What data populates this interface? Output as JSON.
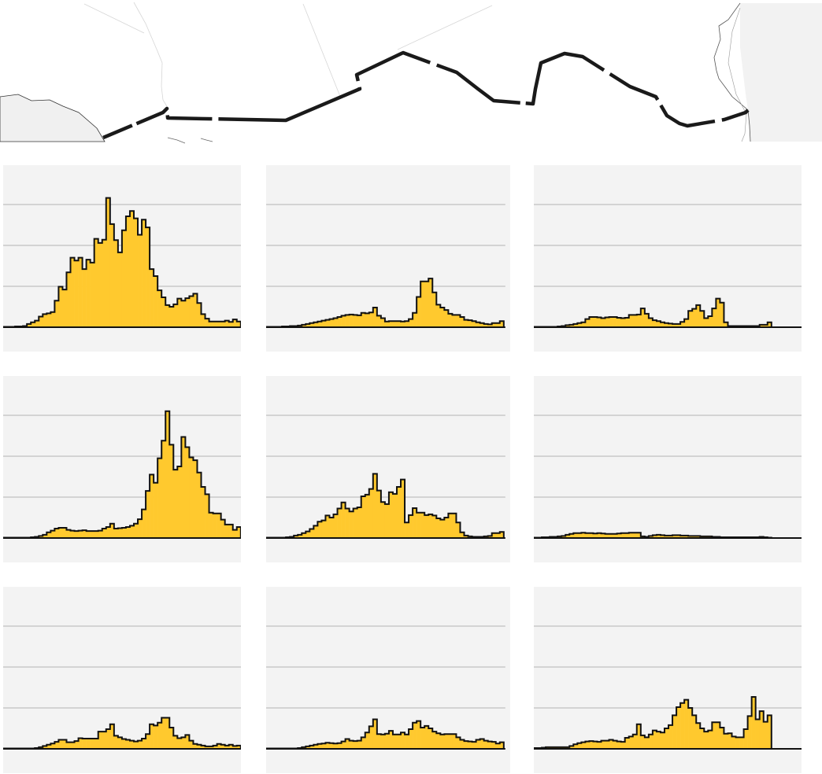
{
  "colors": {
    "fill": "#ffc92e",
    "outline": "#111111",
    "panel_background": "#f3f3f3",
    "gridline": "#b3b3b3",
    "border_line": "#1a1a1a",
    "water": "#f0f0f0"
  },
  "map": {
    "icon": "us-mexico-border-map"
  },
  "chart_data": [
    {
      "type": "bar",
      "subtype": "histogram",
      "grid": true,
      "ylim": [
        0,
        4
      ],
      "gridlines": [
        1,
        2,
        3
      ],
      "x_range": [
        0,
        60
      ],
      "values": [
        0.01,
        0.01,
        0.01,
        0.02,
        0.02,
        0.03,
        0.08,
        0.12,
        0.16,
        0.26,
        0.32,
        0.34,
        0.37,
        0.65,
        0.99,
        0.92,
        1.34,
        1.7,
        1.63,
        1.7,
        1.42,
        1.65,
        1.58,
        2.16,
        2.06,
        2.14,
        3.16,
        2.52,
        2.13,
        1.83,
        2.37,
        2.71,
        2.84,
        2.66,
        2.26,
        2.63,
        2.44,
        1.42,
        1.25,
        0.9,
        0.73,
        0.54,
        0.5,
        0.56,
        0.7,
        0.65,
        0.71,
        0.76,
        0.82,
        0.59,
        0.32,
        0.21,
        0.14,
        0.14,
        0.14,
        0.14,
        0.16,
        0.13,
        0.19,
        0.14
      ]
    },
    {
      "type": "bar",
      "subtype": "histogram",
      "grid": true,
      "ylim": [
        0,
        4
      ],
      "gridlines": [
        1,
        2,
        3
      ],
      "x_range": [
        0,
        60
      ],
      "values": [
        0.01,
        0.01,
        0.01,
        0.01,
        0.02,
        0.02,
        0.03,
        0.03,
        0.04,
        0.06,
        0.08,
        0.1,
        0.12,
        0.14,
        0.16,
        0.18,
        0.2,
        0.22,
        0.25,
        0.28,
        0.3,
        0.31,
        0.3,
        0.29,
        0.35,
        0.34,
        0.36,
        0.48,
        0.28,
        0.22,
        0.14,
        0.15,
        0.15,
        0.15,
        0.14,
        0.15,
        0.2,
        0.35,
        0.74,
        1.12,
        1.12,
        1.19,
        0.85,
        0.55,
        0.48,
        0.42,
        0.33,
        0.3,
        0.3,
        0.25,
        0.18,
        0.17,
        0.15,
        0.12,
        0.1,
        0.08,
        0.07,
        0.1,
        0.1,
        0.15
      ]
    },
    {
      "type": "bar",
      "subtype": "histogram",
      "grid": true,
      "ylim": [
        0,
        4
      ],
      "gridlines": [
        1,
        2,
        3
      ],
      "x_range": [
        0,
        68
      ],
      "values": [
        0.01,
        0.01,
        0.01,
        0.01,
        0.01,
        0.01,
        0.02,
        0.03,
        0.05,
        0.06,
        0.08,
        0.1,
        0.12,
        0.2,
        0.25,
        0.25,
        0.24,
        0.22,
        0.24,
        0.25,
        0.25,
        0.23,
        0.22,
        0.23,
        0.3,
        0.3,
        0.31,
        0.46,
        0.33,
        0.22,
        0.17,
        0.15,
        0.12,
        0.1,
        0.09,
        0.08,
        0.08,
        0.13,
        0.2,
        0.4,
        0.45,
        0.54,
        0.4,
        0.22,
        0.27,
        0.46,
        0.7,
        0.6,
        0.12,
        0.03,
        0.03,
        0.03,
        0.03,
        0.03,
        0.03,
        0.03,
        0.03,
        0.06,
        0.06,
        0.12
      ]
    },
    {
      "type": "bar",
      "subtype": "histogram",
      "grid": true,
      "ylim": [
        0,
        4
      ],
      "gridlines": [
        1,
        2,
        3
      ],
      "x_range": [
        0,
        60
      ],
      "values": [
        0.01,
        0.01,
        0.01,
        0.01,
        0.01,
        0.01,
        0.01,
        0.02,
        0.03,
        0.05,
        0.08,
        0.14,
        0.18,
        0.23,
        0.25,
        0.25,
        0.2,
        0.18,
        0.17,
        0.18,
        0.19,
        0.17,
        0.17,
        0.17,
        0.18,
        0.23,
        0.27,
        0.35,
        0.23,
        0.24,
        0.25,
        0.27,
        0.3,
        0.35,
        0.46,
        0.7,
        1.15,
        1.55,
        1.35,
        1.95,
        2.38,
        3.1,
        2.28,
        1.67,
        1.75,
        2.47,
        2.22,
        1.97,
        1.9,
        1.6,
        1.25,
        1.07,
        0.62,
        0.6,
        0.6,
        0.45,
        0.33,
        0.33,
        0.2,
        0.27
      ]
    },
    {
      "type": "bar",
      "subtype": "histogram",
      "grid": true,
      "ylim": [
        0,
        4
      ],
      "gridlines": [
        1,
        2,
        3
      ],
      "x_range": [
        0,
        60
      ],
      "values": [
        0.01,
        0.01,
        0.01,
        0.01,
        0.01,
        0.02,
        0.03,
        0.06,
        0.08,
        0.12,
        0.16,
        0.22,
        0.3,
        0.4,
        0.43,
        0.55,
        0.5,
        0.58,
        0.72,
        0.87,
        0.72,
        0.65,
        0.72,
        0.75,
        1.02,
        1.06,
        1.2,
        1.57,
        1.16,
        0.88,
        0.83,
        1.12,
        1.08,
        1.25,
        1.43,
        0.38,
        0.56,
        0.73,
        0.62,
        0.62,
        0.56,
        0.58,
        0.55,
        0.48,
        0.45,
        0.5,
        0.6,
        0.6,
        0.38,
        0.14,
        0.06,
        0.04,
        0.03,
        0.03,
        0.03,
        0.04,
        0.05,
        0.12,
        0.12,
        0.15
      ]
    },
    {
      "type": "bar",
      "subtype": "histogram",
      "grid": true,
      "ylim": [
        0,
        4
      ],
      "gridlines": [
        1,
        2,
        3
      ],
      "x_range": [
        0,
        68
      ],
      "values": [
        0.01,
        0.01,
        0.02,
        0.02,
        0.03,
        0.03,
        0.04,
        0.05,
        0.08,
        0.1,
        0.12,
        0.12,
        0.13,
        0.12,
        0.12,
        0.11,
        0.12,
        0.11,
        0.1,
        0.1,
        0.1,
        0.11,
        0.12,
        0.12,
        0.13,
        0.13,
        0.13,
        0.04,
        0.03,
        0.05,
        0.07,
        0.08,
        0.07,
        0.06,
        0.06,
        0.07,
        0.07,
        0.06,
        0.06,
        0.05,
        0.05,
        0.05,
        0.04,
        0.04,
        0.04,
        0.03,
        0.03,
        0.02,
        0.02,
        0.02,
        0.02,
        0.02,
        0.02,
        0.02,
        0.02,
        0.02,
        0.02,
        0.03,
        0.02,
        0.01
      ]
    },
    {
      "type": "bar",
      "subtype": "histogram",
      "grid": true,
      "ylim": [
        0,
        4
      ],
      "gridlines": [
        1,
        2,
        3
      ],
      "x_range": [
        0,
        60
      ],
      "values": [
        0.01,
        0.01,
        0.01,
        0.01,
        0.01,
        0.01,
        0.01,
        0.01,
        0.02,
        0.04,
        0.07,
        0.1,
        0.13,
        0.17,
        0.22,
        0.22,
        0.16,
        0.16,
        0.19,
        0.26,
        0.25,
        0.25,
        0.25,
        0.25,
        0.42,
        0.42,
        0.48,
        0.6,
        0.32,
        0.28,
        0.24,
        0.22,
        0.2,
        0.18,
        0.2,
        0.25,
        0.36,
        0.6,
        0.57,
        0.64,
        0.76,
        0.76,
        0.52,
        0.32,
        0.26,
        0.28,
        0.34,
        0.2,
        0.12,
        0.1,
        0.08,
        0.06,
        0.06,
        0.08,
        0.12,
        0.1,
        0.08,
        0.1,
        0.07,
        0.08
      ]
    },
    {
      "type": "bar",
      "subtype": "histogram",
      "grid": true,
      "ylim": [
        0,
        4
      ],
      "gridlines": [
        1,
        2,
        3
      ],
      "x_range": [
        0,
        60
      ],
      "values": [
        0.01,
        0.01,
        0.01,
        0.01,
        0.01,
        0.01,
        0.01,
        0.01,
        0.02,
        0.04,
        0.06,
        0.08,
        0.1,
        0.12,
        0.13,
        0.15,
        0.14,
        0.13,
        0.14,
        0.18,
        0.24,
        0.2,
        0.19,
        0.2,
        0.28,
        0.4,
        0.55,
        0.72,
        0.36,
        0.35,
        0.37,
        0.44,
        0.35,
        0.35,
        0.4,
        0.35,
        0.48,
        0.64,
        0.68,
        0.52,
        0.56,
        0.5,
        0.42,
        0.38,
        0.35,
        0.36,
        0.36,
        0.36,
        0.28,
        0.22,
        0.19,
        0.18,
        0.17,
        0.22,
        0.24,
        0.2,
        0.18,
        0.17,
        0.13,
        0.16
      ]
    },
    {
      "type": "bar",
      "subtype": "histogram",
      "grid": true,
      "ylim": [
        0,
        4
      ],
      "gridlines": [
        1,
        2,
        3
      ],
      "x_range": [
        0,
        68
      ],
      "values": [
        0.02,
        0.02,
        0.03,
        0.04,
        0.04,
        0.04,
        0.04,
        0.04,
        0.04,
        0.07,
        0.11,
        0.14,
        0.16,
        0.18,
        0.19,
        0.18,
        0.17,
        0.2,
        0.2,
        0.22,
        0.2,
        0.18,
        0.17,
        0.27,
        0.3,
        0.35,
        0.6,
        0.33,
        0.28,
        0.35,
        0.45,
        0.42,
        0.4,
        0.5,
        0.58,
        0.82,
        1.02,
        1.12,
        1.2,
        1.0,
        0.82,
        0.63,
        0.5,
        0.42,
        0.45,
        0.65,
        0.65,
        0.52,
        0.37,
        0.38,
        0.3,
        0.28,
        0.28,
        0.48,
        0.8,
        1.27,
        0.72,
        0.92,
        0.66,
        0.82
      ]
    }
  ]
}
